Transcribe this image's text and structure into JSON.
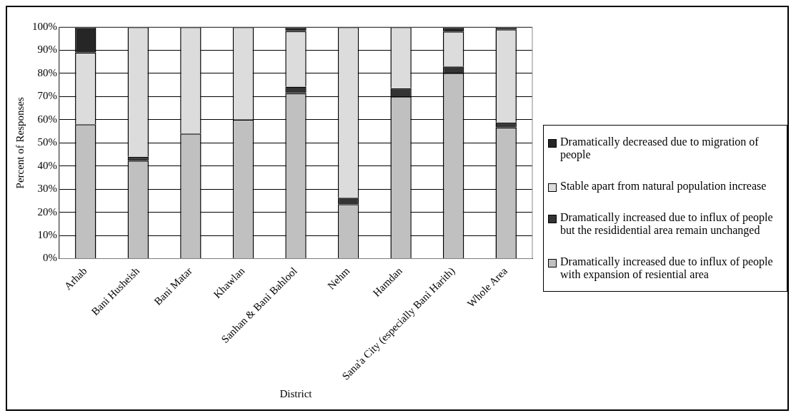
{
  "chart_data": {
    "type": "bar",
    "stacked": true,
    "xlabel": "District",
    "ylabel": "Percent of Responses",
    "categories": [
      "Arhab",
      "Bani Husheish",
      "Bani Matar",
      "Khawlan",
      "Sanhan & Bani Bahlool",
      "Nehm",
      "Hamdan",
      "Sana'a City (especially Bani Harith)",
      "Whole Area"
    ],
    "series": [
      {
        "name": "Dramatically increased due to influx of people with expansion of resiential area",
        "color": "#c0c0c0",
        "values": [
          58,
          42.3,
          54,
          60,
          71.5,
          23.5,
          70,
          80.2,
          56.6
        ]
      },
      {
        "name": "Dramatically increased due to influx of people but the resididential area remain unchanged",
        "color": "#333333",
        "values": [
          0,
          1.7,
          0,
          0,
          2.8,
          2.8,
          3.6,
          2.8,
          2.2
        ]
      },
      {
        "name": "Stable apart from natural population increase",
        "color": "#dcdcdc",
        "values": [
          31,
          56,
          46,
          40,
          24,
          73.7,
          26.4,
          15.1,
          40.2
        ]
      },
      {
        "name": "Dramatically decreased due to migration of people",
        "color": "#262626",
        "values": [
          11,
          0,
          0,
          0,
          1.7,
          0,
          0,
          1.9,
          1
        ]
      }
    ],
    "ylim": [
      0,
      100
    ],
    "yticks": [
      {
        "value": 0,
        "label": "0%"
      },
      {
        "value": 10,
        "label": "10%"
      },
      {
        "value": 20,
        "label": "20%"
      },
      {
        "value": 30,
        "label": "30%"
      },
      {
        "value": 40,
        "label": "40%"
      },
      {
        "value": 50,
        "label": "50%"
      },
      {
        "value": 60,
        "label": "60%"
      },
      {
        "value": 70,
        "label": "70%"
      },
      {
        "value": 80,
        "label": "80%"
      },
      {
        "value": 90,
        "label": "90%"
      },
      {
        "value": 100,
        "label": "100%"
      }
    ],
    "grid": "y",
    "legend": "right"
  }
}
